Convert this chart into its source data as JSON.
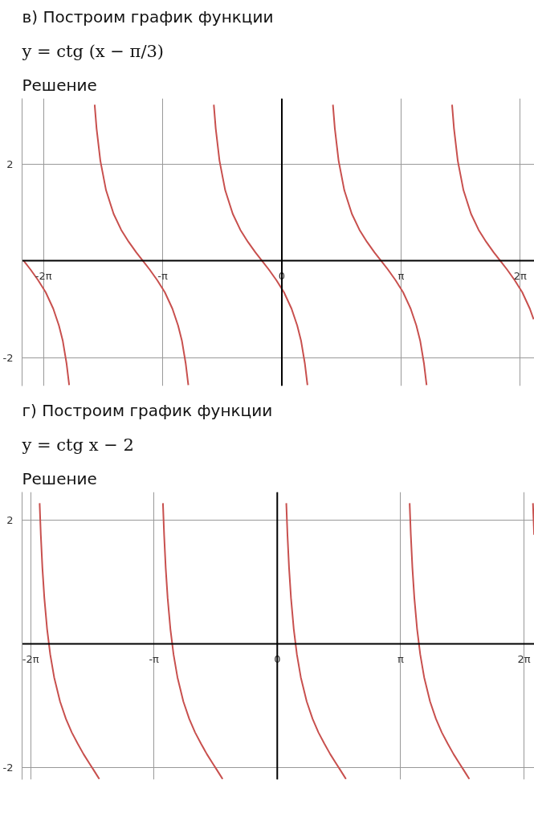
{
  "chart_data": [
    {
      "type": "line",
      "title": "в) Построим график функции",
      "subtitle": "y = ctg (x − π/3)",
      "annotations": [
        "Решение"
      ],
      "xlim": [
        -6.85,
        6.66
      ],
      "ylim": [
        -2.59,
        3.36
      ],
      "xticks": [
        {
          "value": -6.2832,
          "label": "-2π"
        },
        {
          "value": -3.1416,
          "label": "-π"
        },
        {
          "value": 0,
          "label": "0"
        },
        {
          "value": 3.1416,
          "label": "π"
        },
        {
          "value": 6.2832,
          "label": "2π"
        }
      ],
      "yticks": [
        -2,
        2
      ],
      "grid": true,
      "ref_lines": [
        {
          "axis": "x",
          "value": 0,
          "color": "#000000"
        }
      ],
      "series": [
        {
          "color": "#c8504e",
          "x": [
            -6.807,
            -6.628,
            -6.428,
            -6.228,
            -6.028,
            -5.878,
            -5.778,
            -5.678,
            -5.608
          ],
          "values": [
            0,
            -0.18,
            -0.4,
            -0.65,
            -0.99,
            -1.34,
            -1.65,
            -2.12,
            -2.57
          ]
        },
        {
          "color": "#c8504e",
          "x": [
            -4.936,
            -4.886,
            -4.786,
            -4.636,
            -4.436,
            -4.236,
            -4.036,
            -3.836,
            -3.665,
            -3.486,
            -3.286,
            -3.086,
            -2.886,
            -2.736,
            -2.636,
            -2.536,
            -2.466
          ],
          "values": [
            3.23,
            2.74,
            2.07,
            1.46,
            0.97,
            0.64,
            0.39,
            0.17,
            0,
            -0.18,
            -0.4,
            -0.65,
            -0.99,
            -1.34,
            -1.65,
            -2.12,
            -2.57
          ]
        },
        {
          "color": "#c8504e",
          "x": [
            -1.794,
            -1.744,
            -1.644,
            -1.494,
            -1.294,
            -1.094,
            -0.894,
            -0.694,
            -0.524,
            -0.344,
            -0.144,
            0.056,
            0.256,
            0.406,
            0.506,
            0.606,
            0.676
          ],
          "values": [
            3.23,
            2.74,
            2.07,
            1.46,
            0.97,
            0.64,
            0.39,
            0.17,
            0,
            -0.18,
            -0.4,
            -0.65,
            -0.99,
            -1.34,
            -1.65,
            -2.12,
            -2.57
          ]
        },
        {
          "color": "#c8504e",
          "x": [
            1.347,
            1.397,
            1.497,
            1.647,
            1.847,
            2.047,
            2.247,
            2.447,
            2.618,
            2.797,
            2.997,
            3.197,
            3.397,
            3.547,
            3.647,
            3.747,
            3.817
          ],
          "values": [
            3.23,
            2.74,
            2.07,
            1.46,
            0.97,
            0.64,
            0.39,
            0.17,
            0,
            -0.18,
            -0.4,
            -0.65,
            -0.99,
            -1.34,
            -1.65,
            -2.12,
            -2.57
          ]
        },
        {
          "color": "#c8504e",
          "x": [
            4.489,
            4.539,
            4.639,
            4.789,
            4.989,
            5.189,
            5.389,
            5.589,
            5.76,
            5.939,
            6.139,
            6.339,
            6.539,
            6.639
          ],
          "values": [
            3.23,
            2.74,
            2.07,
            1.46,
            0.97,
            0.64,
            0.39,
            0.17,
            0,
            -0.18,
            -0.4,
            -0.65,
            -0.99,
            -1.21
          ]
        }
      ]
    },
    {
      "type": "line",
      "title": "г) Построим график функции",
      "subtitle": "y = ctg x − 2",
      "annotations": [
        "Решение"
      ],
      "xlim": [
        -6.5,
        6.55
      ],
      "ylim": [
        -2.19,
        2.45
      ],
      "xticks": [
        {
          "value": -6.2832,
          "label": "-2π"
        },
        {
          "value": -3.1416,
          "label": "-π"
        },
        {
          "value": 0,
          "label": "0"
        },
        {
          "value": 3.1416,
          "label": "π"
        },
        {
          "value": 6.2832,
          "label": "2π"
        }
      ],
      "yticks": [
        -2,
        2
      ],
      "grid": true,
      "ref_lines": [
        {
          "axis": "x",
          "value": 0,
          "color": "#000000"
        }
      ],
      "series": [
        {
          "color": "#c8504e",
          "x": [
            -6.053,
            -6.023,
            -5.983,
            -5.933,
            -5.863,
            -5.783,
            -5.683,
            -5.533,
            -5.383,
            -5.233,
            -5.083,
            -4.933,
            -4.783,
            -4.683,
            -4.583,
            -4.533
          ],
          "values": [
            2.27,
            1.76,
            1.23,
            0.74,
            0.24,
            -0.17,
            -0.54,
            -0.93,
            -1.21,
            -1.43,
            -1.61,
            -1.78,
            -1.93,
            -2.03,
            -2.13,
            -2.18
          ]
        },
        {
          "color": "#c8504e",
          "x": [
            -2.912,
            -2.882,
            -2.842,
            -2.792,
            -2.722,
            -2.642,
            -2.542,
            -2.392,
            -2.242,
            -2.092,
            -1.942,
            -1.792,
            -1.642,
            -1.542,
            -1.442,
            -1.392
          ],
          "values": [
            2.27,
            1.76,
            1.23,
            0.74,
            0.24,
            -0.17,
            -0.54,
            -0.93,
            -1.21,
            -1.43,
            -1.61,
            -1.78,
            -1.93,
            -2.03,
            -2.13,
            -2.18
          ]
        },
        {
          "color": "#c8504e",
          "x": [
            0.23,
            0.26,
            0.3,
            0.35,
            0.42,
            0.5,
            0.6,
            0.75,
            0.9,
            1.05,
            1.2,
            1.35,
            1.5,
            1.6,
            1.7,
            1.75
          ],
          "values": [
            2.27,
            1.76,
            1.23,
            0.74,
            0.24,
            -0.17,
            -0.54,
            -0.93,
            -1.21,
            -1.43,
            -1.61,
            -1.78,
            -1.93,
            -2.03,
            -2.13,
            -2.18
          ]
        },
        {
          "color": "#c8504e",
          "x": [
            3.372,
            3.402,
            3.442,
            3.492,
            3.562,
            3.642,
            3.742,
            3.892,
            4.042,
            4.192,
            4.342,
            4.492,
            4.642,
            4.742,
            4.842,
            4.892
          ],
          "values": [
            2.27,
            1.76,
            1.23,
            0.74,
            0.24,
            -0.17,
            -0.54,
            -0.93,
            -1.21,
            -1.43,
            -1.61,
            -1.78,
            -1.93,
            -2.03,
            -2.13,
            -2.18
          ]
        },
        {
          "color": "#c8504e",
          "x": [
            6.513,
            6.543
          ],
          "values": [
            2.27,
            1.76
          ]
        }
      ]
    }
  ]
}
